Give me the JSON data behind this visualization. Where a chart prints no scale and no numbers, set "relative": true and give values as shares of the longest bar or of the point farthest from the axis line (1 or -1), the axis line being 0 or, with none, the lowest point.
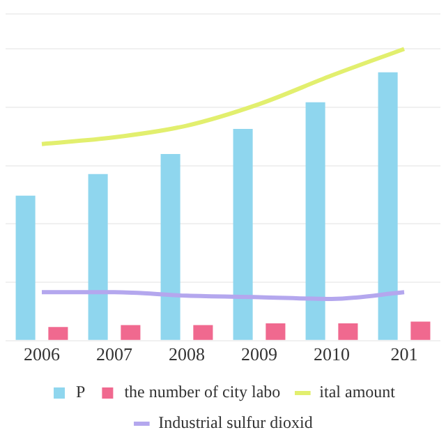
{
  "chart_data": {
    "type": "bar",
    "relative": true,
    "grid": "y",
    "legend": "bottom",
    "marker": "none",
    "categories": [
      "2006",
      "2007",
      "2008",
      "2009",
      "2010",
      "201"
    ],
    "series": [
      {
        "name": "P",
        "color": "#8fd6ee",
        "values": [
          0.497,
          0.571,
          0.64,
          0.726,
          0.817,
          0.92
        ]
      },
      {
        "name": "the number of city labo",
        "color": "#f0698f",
        "values": [
          0.047,
          0.053,
          0.053,
          0.059,
          0.059,
          0.065
        ]
      },
      {
        "name": "ital amount",
        "type": "line",
        "color": "#e2ef6e",
        "values": [
          0.674,
          0.697,
          0.737,
          0.811,
          0.909,
          1
        ]
      },
      {
        "name": "Industrial sulfur dioxid",
        "type": "line",
        "color": "#b4a7ee",
        "values": [
          0.166,
          0.166,
          0.154,
          0.149,
          0.143,
          0.166
        ]
      }
    ]
  }
}
